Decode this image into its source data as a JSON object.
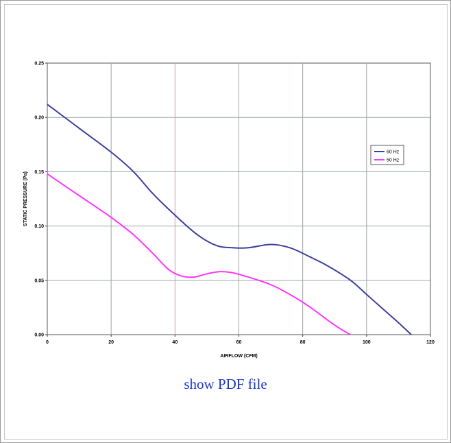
{
  "link": {
    "label": "show PDF file"
  },
  "chart_data": {
    "type": "line",
    "title": "",
    "xlabel": "AIRFLOW (CFM)",
    "ylabel": "STATIC PRESSURE (Pa)",
    "xlim": [
      0,
      120
    ],
    "ylim": [
      0,
      0.25
    ],
    "xticks": [
      "0",
      "20",
      "40",
      "60",
      "80",
      "100",
      "120"
    ],
    "yticks": [
      "0.00",
      "0.05",
      "0.10",
      "0.15",
      "0.20",
      "0.25"
    ],
    "grid": true,
    "legend_position": "right",
    "series": [
      {
        "name": "60 Hz",
        "color": "#3b3f9e",
        "x": [
          0,
          10,
          20,
          27,
          33,
          40,
          47,
          53,
          58,
          63,
          70,
          76,
          82,
          88,
          95,
          100,
          105,
          110,
          114
        ],
        "y": [
          0.212,
          0.19,
          0.168,
          0.15,
          0.13,
          0.11,
          0.092,
          0.082,
          0.08,
          0.08,
          0.083,
          0.08,
          0.072,
          0.063,
          0.05,
          0.037,
          0.024,
          0.011,
          0.0
        ]
      },
      {
        "name": "50 Hz",
        "color": "#ff33ff",
        "x": [
          0,
          10,
          20,
          27,
          33,
          38,
          42,
          46,
          50,
          54,
          58,
          63,
          70,
          76,
          82,
          88,
          92,
          95
        ],
        "y": [
          0.148,
          0.128,
          0.108,
          0.092,
          0.075,
          0.06,
          0.054,
          0.053,
          0.056,
          0.058,
          0.057,
          0.053,
          0.046,
          0.037,
          0.026,
          0.013,
          0.005,
          0.0
        ]
      }
    ]
  }
}
